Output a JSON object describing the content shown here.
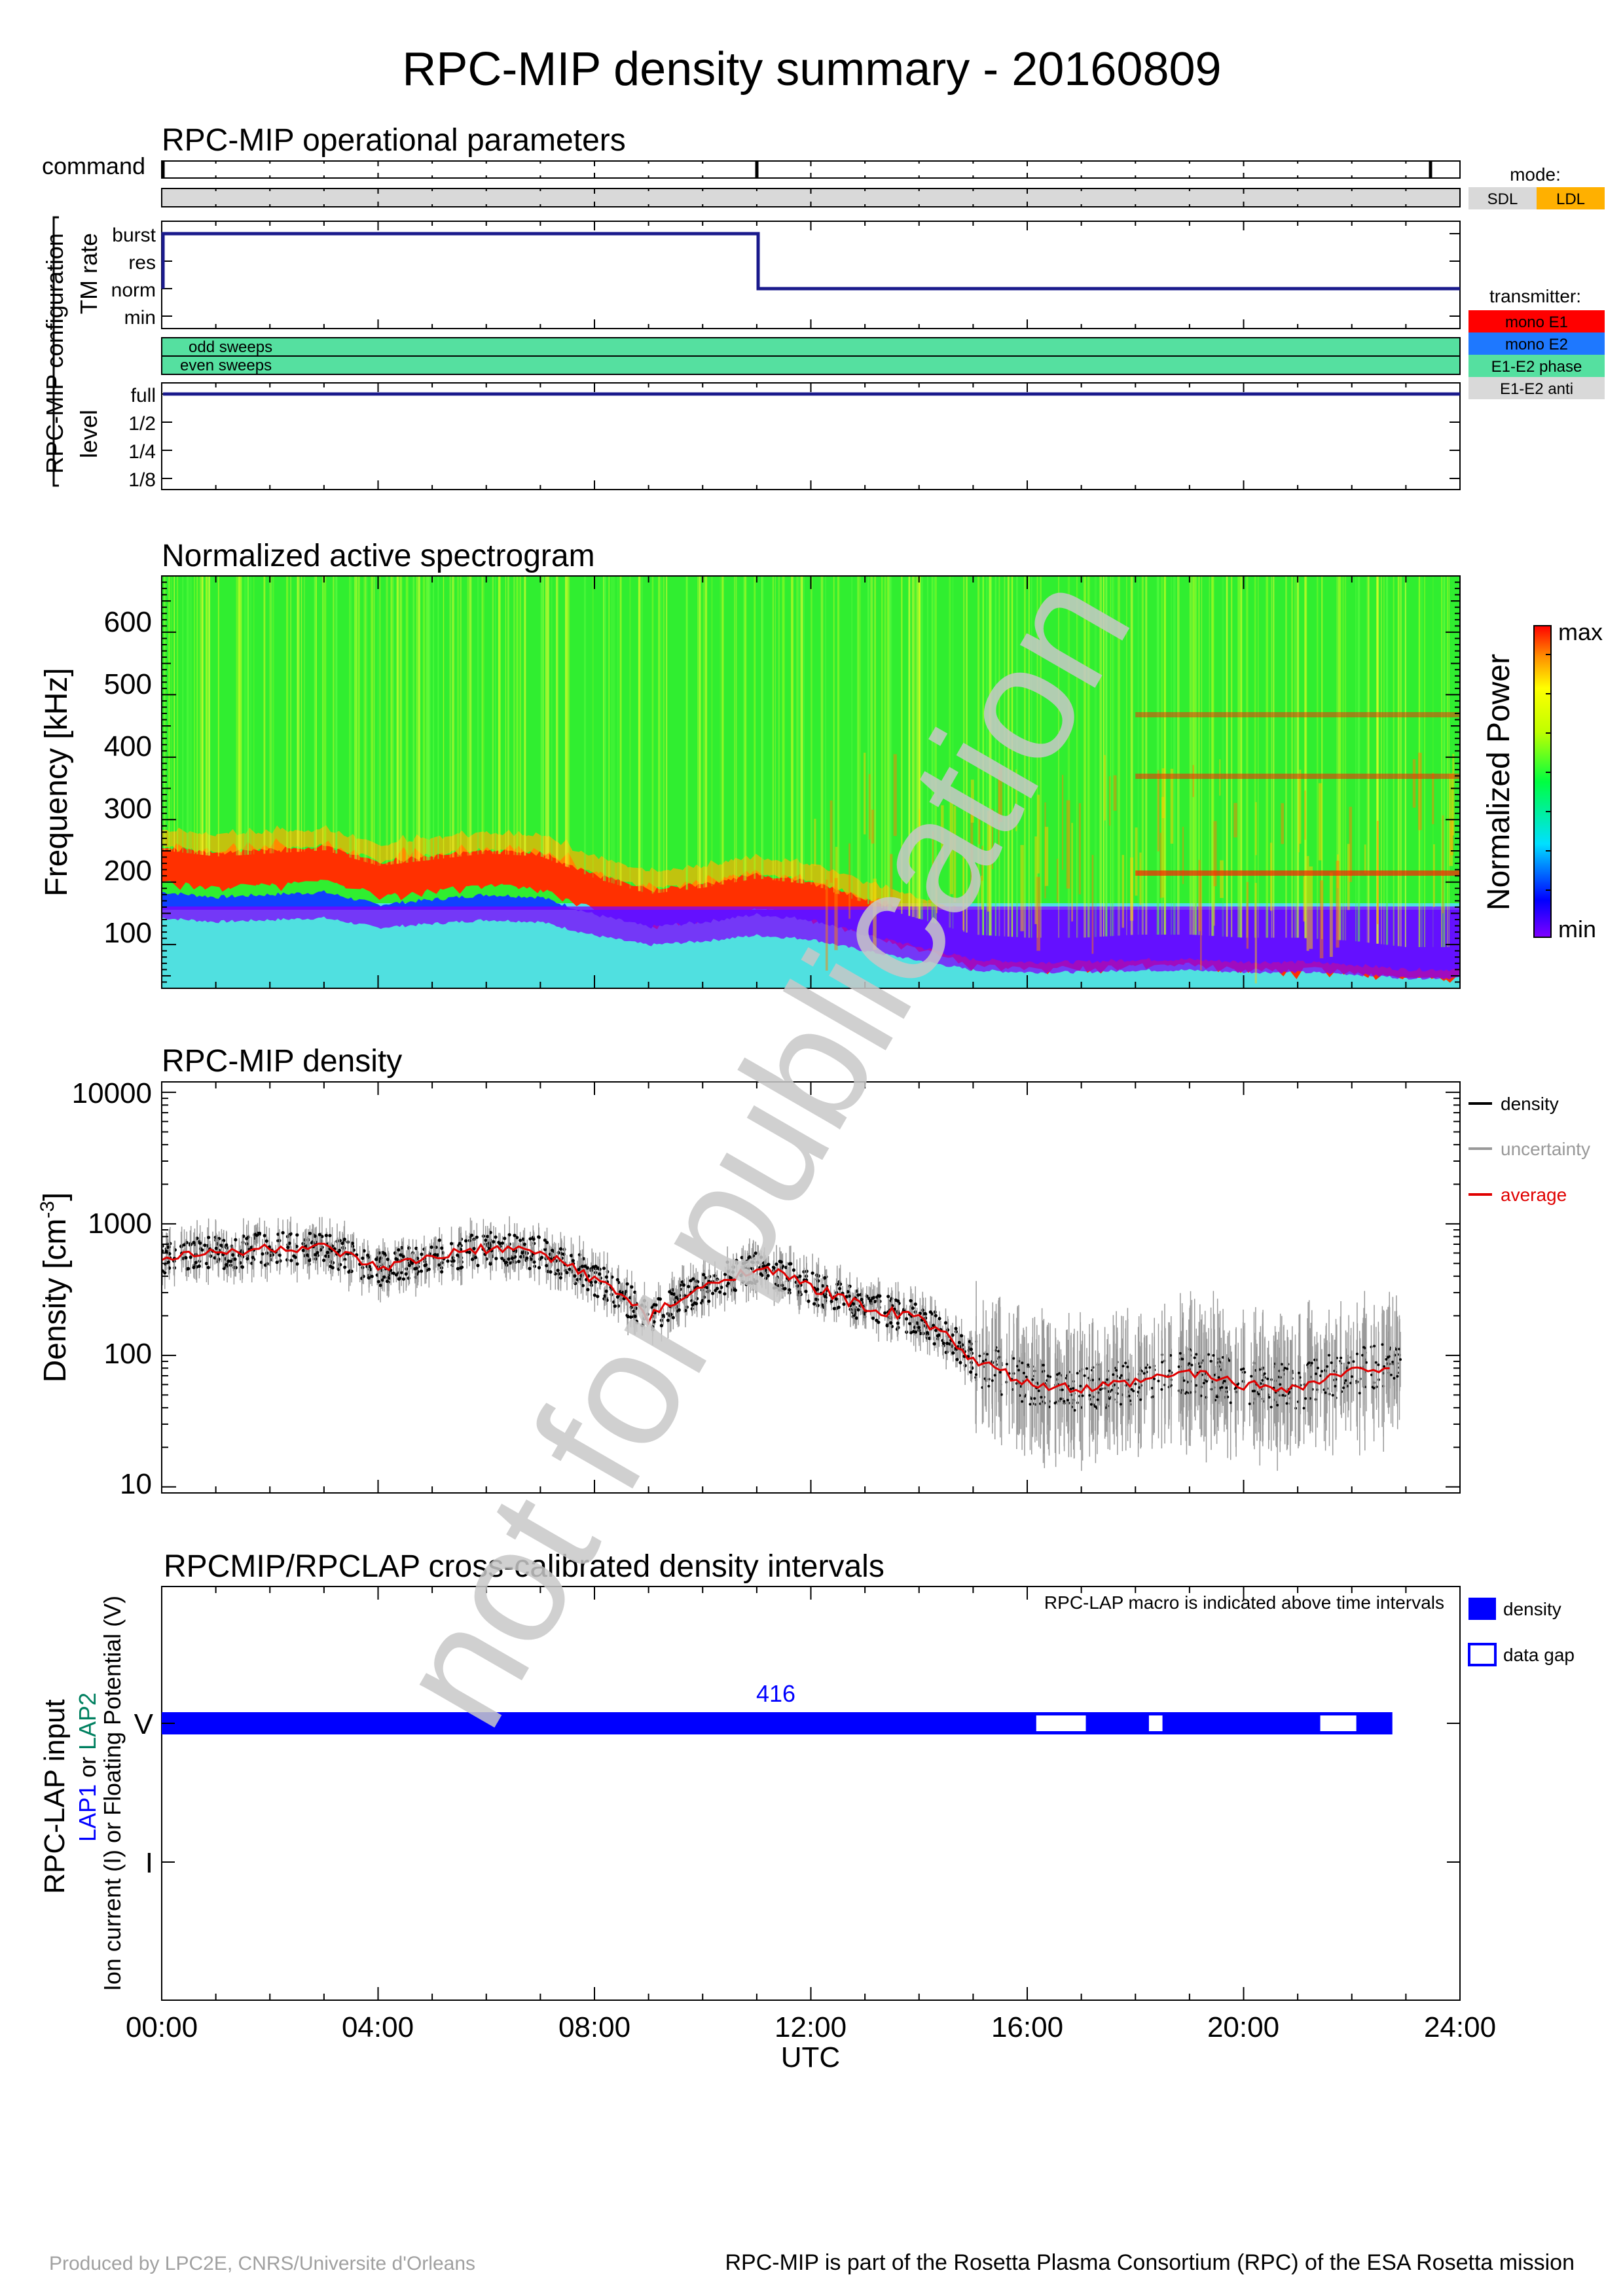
{
  "title": "RPC-MIP density summary - 20160809",
  "watermark": "not for publication",
  "footer": {
    "left": "Produced by LPC2E, CNRS/Universite d'Orleans",
    "right": "RPC-MIP is part of the Rosetta Plasma Consortium (RPC) of the ESA Rosetta mission"
  },
  "colors": {
    "navy": "#1a1a8c",
    "sweeps_green": "#55e0a0",
    "mono_e1": "#ff0000",
    "mono_e2": "#1e78ff",
    "e1e2_phase": "#55e0a0",
    "e1e2_anti": "#d9d9d9",
    "sdl": "#d9d9d9",
    "ldl": "#ffb000",
    "lap_blue": "#0000ff",
    "lap2_green": "#008060",
    "average_red": "#e00000",
    "uncertainty_gray": "#999999",
    "watermark_gray": "#c8c8c8"
  },
  "time_axis": {
    "ticks": [
      "00:00",
      "04:00",
      "08:00",
      "12:00",
      "16:00",
      "20:00",
      "24:00"
    ],
    "label": "UTC"
  },
  "panel1": {
    "title": "RPC-MIP operational parameters",
    "command_label": "command",
    "config_label": "RPC-MIP configuration",
    "tm_rate_label": "TM rate",
    "tm_levels": [
      "burst",
      "res",
      "norm",
      "min"
    ],
    "sweeps": [
      "odd sweeps",
      "even sweeps"
    ],
    "level_label": "level",
    "level_levels": [
      "full",
      "1/2",
      "1/4",
      "1/8"
    ],
    "mode_title": "mode:",
    "mode_items": [
      "SDL",
      "LDL"
    ],
    "transmitter_title": "transmitter:",
    "transmitter_items": [
      "mono E1",
      "mono E2",
      "E1-E2 phase",
      "E1-E2 anti"
    ]
  },
  "panel2": {
    "title": "Normalized active spectrogram",
    "ylabel": "Frequency [kHz]",
    "yticks": [
      "100",
      "200",
      "300",
      "400",
      "500",
      "600"
    ],
    "colorbar_label": "Normalized Power",
    "colorbar_max": "max",
    "colorbar_min": "min"
  },
  "panel3": {
    "title": "RPC-MIP density",
    "ylabel": "Density [cm",
    "ylabel_sup": "-3",
    "ylabel_end": "]",
    "yticks": [
      "10",
      "100",
      "1000",
      "10000"
    ],
    "legend": [
      "density",
      "uncertainty",
      "average"
    ]
  },
  "panel4": {
    "title": "RPCMIP/RPCLAP cross-calibrated density intervals",
    "note": "RPC-LAP macro is indicated above time intervals",
    "ylabel_main": "RPC-LAP input",
    "ylabel_lap1": "LAP1",
    "ylabel_or": " or ",
    "ylabel_lap2": "LAP2",
    "ylabel_sub": "Ion current (I) or Floating Potential (V)",
    "yticks": [
      "V",
      "I"
    ],
    "macro": "416",
    "legend": [
      "density",
      "data gap"
    ]
  },
  "chart_data": [
    {
      "type": "line",
      "title": "RPC-MIP operational parameters",
      "xlabel": "UTC",
      "xlim": [
        "00:00",
        "24:00"
      ],
      "series": [
        {
          "name": "TM rate",
          "points": [
            [
              "00:00",
              "burst"
            ],
            [
              "11:00",
              "burst"
            ],
            [
              "11:00",
              "norm"
            ],
            [
              "24:00",
              "norm"
            ]
          ]
        },
        {
          "name": "level",
          "points": [
            [
              "00:00",
              "full"
            ],
            [
              "24:00",
              "full"
            ]
          ]
        }
      ],
      "command_marks": [
        "00:00",
        "11:00",
        "23:25"
      ],
      "transmitter": "E1-E2 phase"
    },
    {
      "type": "heatmap",
      "title": "Normalized active spectrogram",
      "xlabel": "UTC",
      "ylabel": "Frequency [kHz]",
      "ylim": [
        30,
        690
      ],
      "xlim": [
        "00:00",
        "24:00"
      ],
      "colorscale": [
        "min",
        "max"
      ],
      "plasma_line_khz": {
        "x": [
          "00:00",
          "01:00",
          "02:00",
          "03:00",
          "04:00",
          "05:00",
          "06:00",
          "07:00",
          "08:00",
          "09:00",
          "10:00",
          "11:00",
          "12:00",
          "13:00",
          "14:00",
          "15:00",
          "16:00",
          "17:00",
          "18:00",
          "19:00",
          "20:00",
          "21:00",
          "22:00",
          "23:00",
          "24:00"
        ],
        "values": [
          230,
          220,
          225,
          230,
          205,
          215,
          225,
          220,
          185,
          160,
          170,
          185,
          175,
          145,
          120,
          95,
          90,
          90,
          95,
          95,
          90,
          90,
          85,
          75,
          75
        ]
      }
    },
    {
      "type": "scatter",
      "title": "RPC-MIP density",
      "xlabel": "UTC",
      "ylabel": "Density [cm-3]",
      "yscale": "log",
      "ylim": [
        9,
        12000
      ],
      "xlim": [
        "00:00",
        "24:00"
      ],
      "x": [
        "00:00",
        "01:00",
        "02:00",
        "03:00",
        "04:00",
        "05:00",
        "06:00",
        "07:00",
        "08:00",
        "09:00",
        "10:00",
        "11:00",
        "12:00",
        "13:00",
        "14:00",
        "15:00",
        "16:00",
        "17:00",
        "18:00",
        "19:00",
        "20:00",
        "21:00",
        "22:00",
        "22:45"
      ],
      "series": [
        {
          "name": "average",
          "values": [
            560,
            600,
            650,
            650,
            450,
            550,
            650,
            600,
            380,
            190,
            320,
            470,
            330,
            230,
            190,
            90,
            60,
            55,
            62,
            75,
            60,
            57,
            75,
            85
          ]
        }
      ],
      "legend": [
        "density",
        "uncertainty",
        "average"
      ]
    },
    {
      "type": "bar",
      "title": "RPCMIP/RPCLAP cross-calibrated density intervals",
      "xlabel": "UTC",
      "ylabel": "RPC-LAP input",
      "xlim": [
        "00:00",
        "24:00"
      ],
      "intervals": [
        {
          "channel": "V",
          "start": "00:00",
          "end": "22:45",
          "macro": "416"
        }
      ],
      "gaps": [
        {
          "start": "16:10",
          "end": "17:05"
        },
        {
          "start": "18:15",
          "end": "18:30"
        },
        {
          "start": "21:25",
          "end": "22:05"
        }
      ]
    }
  ]
}
